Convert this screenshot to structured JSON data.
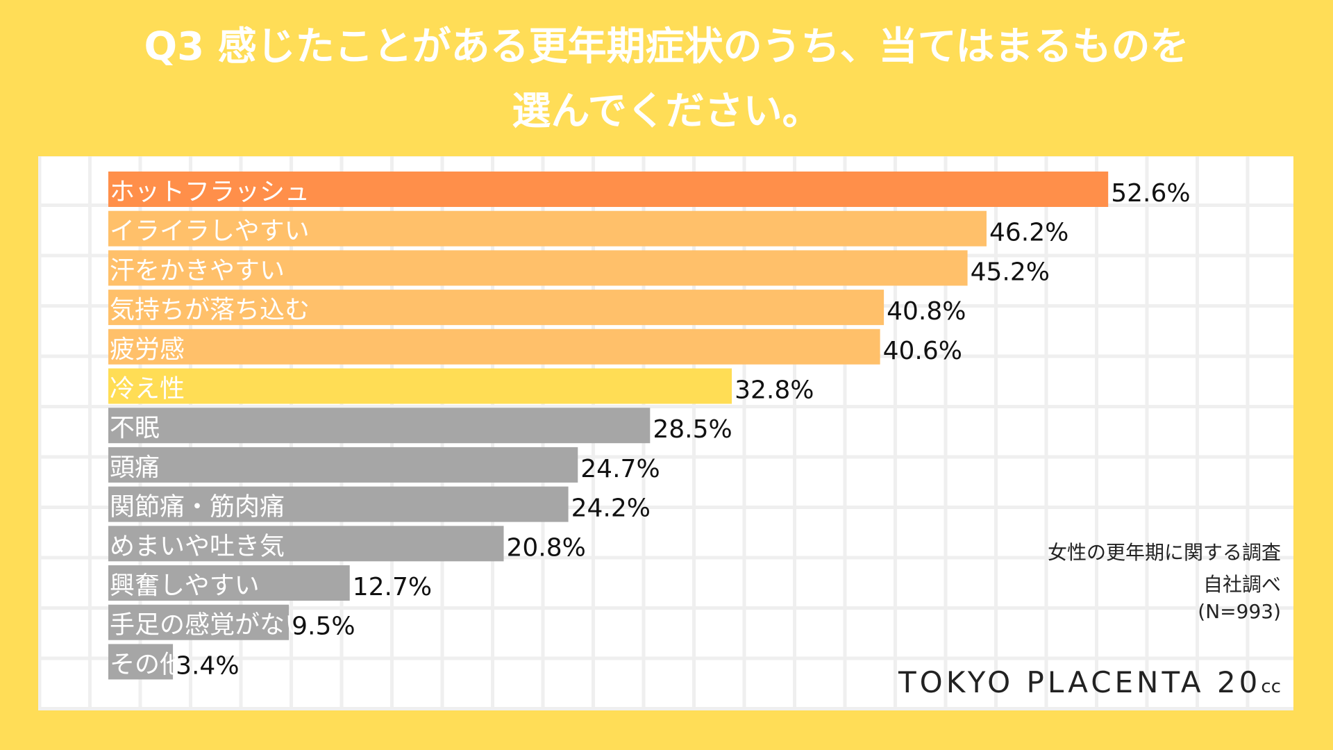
{
  "title_lines": [
    "Q3 感じたことがある更年期症状のうち、当てはまるものを",
    "選んでください。"
  ],
  "source": [
    "女性の更年期に関する調査",
    "自社調べ",
    "(N=993)"
  ],
  "logo": {
    "main": "TOKYO PLACENTA 20",
    "suffix": "cc"
  },
  "colors": {
    "background": "#FFDD57",
    "top": "#FF8F4A",
    "high": "#FFC06A",
    "mid": "#FFDD55",
    "other": "#A6A6A6"
  },
  "chart_data": {
    "type": "bar",
    "orientation": "horizontal",
    "categories": [
      "ホットフラッシュ",
      "イライラしやすい",
      "汗をかきやすい",
      "気持ちが落ち込む",
      "疲労感",
      "冷え性",
      "不眠",
      "頭痛",
      "関節痛・筋肉痛",
      "めまいや吐き気",
      "興奮しやすい",
      "手足の感覚がない",
      "その他"
    ],
    "values": [
      52.6,
      46.2,
      45.2,
      40.8,
      40.6,
      32.8,
      28.5,
      24.7,
      24.2,
      20.8,
      12.7,
      9.5,
      3.4
    ],
    "labels": [
      "52.6%",
      "46.2%",
      "45.2%",
      "40.8%",
      "40.6%",
      "32.8%",
      "28.5%",
      "24.7%",
      "24.2%",
      "20.8%",
      "12.7%",
      "9.5%",
      "3.4%"
    ],
    "bar_colors": [
      "#FF8F4A",
      "#FFC06A",
      "#FFC06A",
      "#FFC06A",
      "#FFC06A",
      "#FFDD55",
      "#A6A6A6",
      "#A6A6A6",
      "#A6A6A6",
      "#A6A6A6",
      "#A6A6A6",
      "#A6A6A6",
      "#A6A6A6"
    ],
    "unit": "%"
  }
}
